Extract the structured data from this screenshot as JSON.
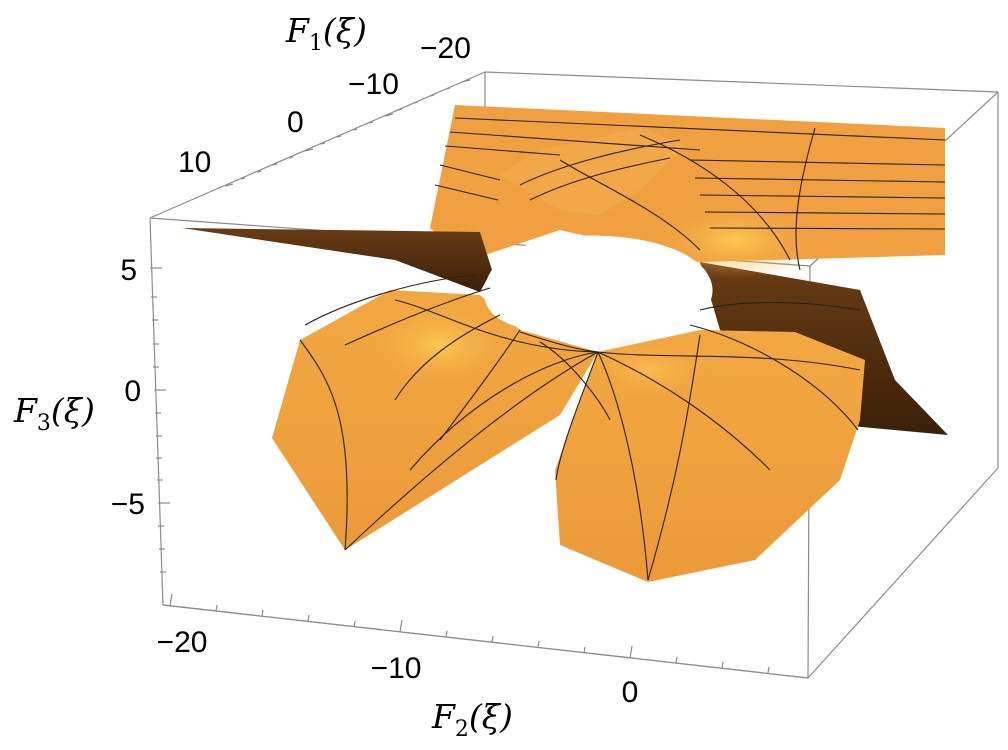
{
  "chart_data": {
    "type": "surface3d",
    "title": "",
    "axes": {
      "x": {
        "label": "F",
        "label_sub": "1",
        "label_arg": "(ξ)",
        "ticks": [
          "−20",
          "−10",
          "0",
          "10"
        ]
      },
      "y": {
        "label": "F",
        "label_sub": "2",
        "label_arg": "(ξ)",
        "ticks": [
          "−20",
          "−10",
          "0"
        ]
      },
      "z": {
        "label": "F",
        "label_sub": "3",
        "label_arg": "(ξ)",
        "ticks": [
          "5",
          "0",
          "−5"
        ]
      }
    },
    "surface_colors": {
      "light": "#f6b548",
      "mid": "#ef9c3c",
      "dark": "#4a2a0e",
      "highlight": "#ffd45a",
      "mesh": "#2a2016"
    },
    "bounding_box": true
  }
}
